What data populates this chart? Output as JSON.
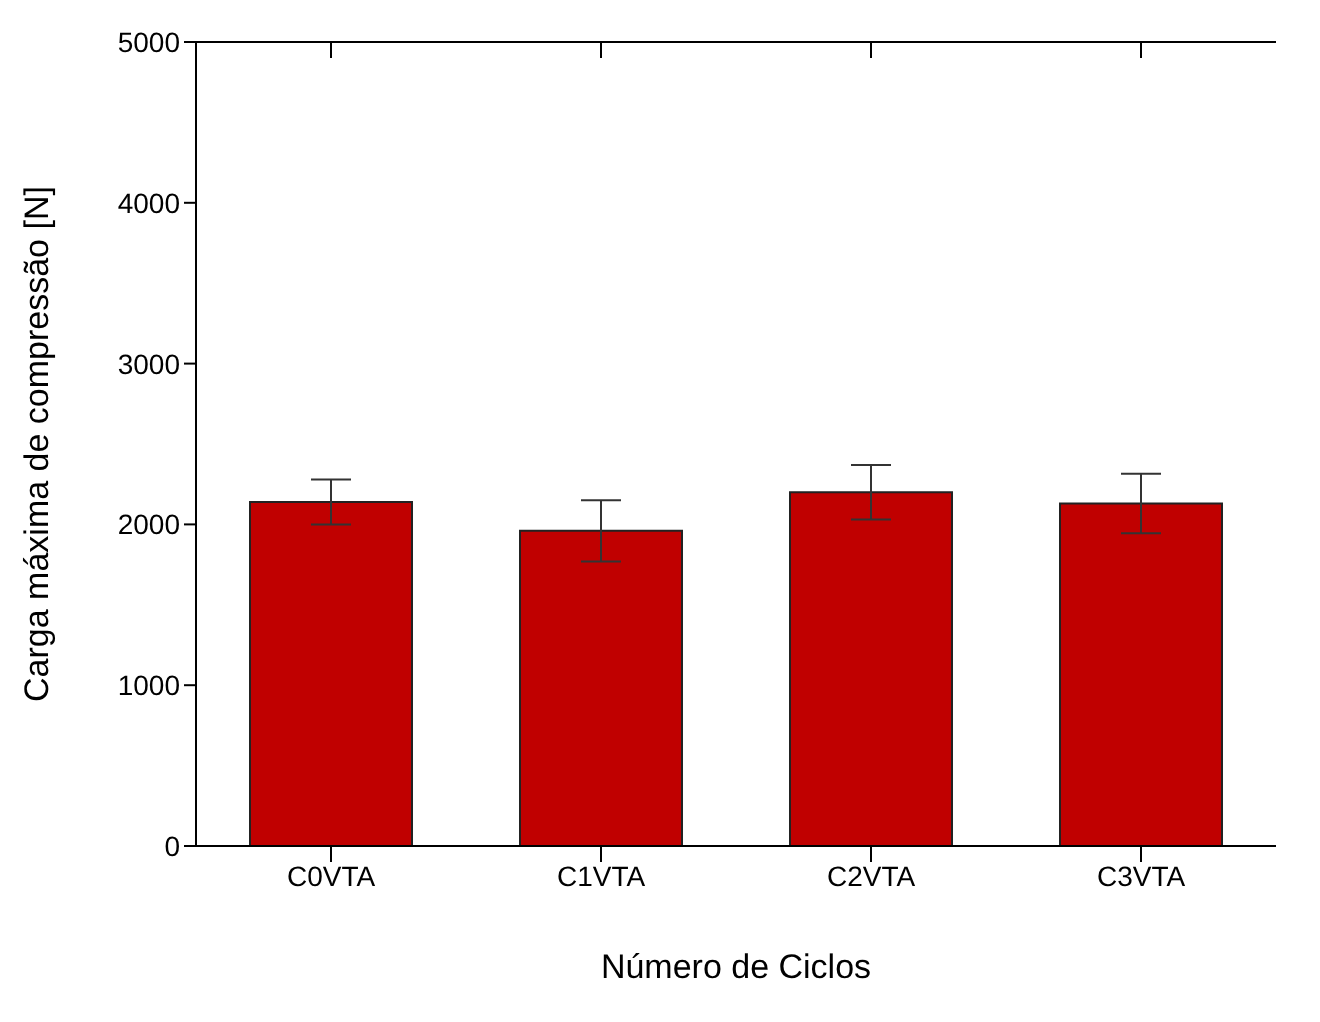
{
  "chart_data": {
    "type": "bar",
    "xlabel": "Número de Ciclos",
    "ylabel": "Carga máxima de compressão [N]",
    "categories": [
      "C0VTA",
      "C1VTA",
      "C2VTA",
      "C3VTA"
    ],
    "values": [
      2140,
      1960,
      2200,
      2130
    ],
    "errors": [
      140,
      190,
      170,
      185
    ],
    "color": "#c00000",
    "ylim": [
      0,
      5000
    ],
    "yticks": [
      0,
      1000,
      2000,
      3000,
      4000,
      5000
    ],
    "grid": false,
    "legend": false
  }
}
